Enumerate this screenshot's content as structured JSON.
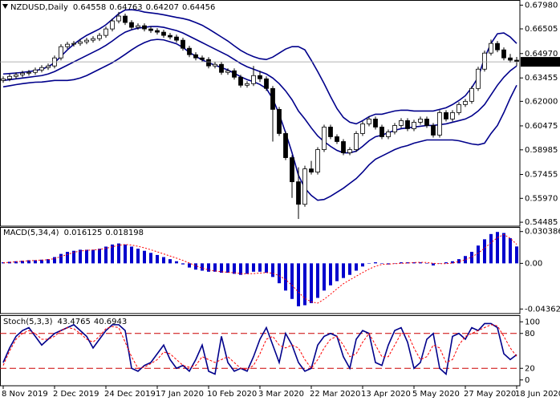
{
  "chart_data": [
    {
      "type": "candlestick",
      "title": "NZDUSD,Daily",
      "up_color": "#ffffff",
      "down_color": "#000000",
      "wick_color": "#000000",
      "open": [
        0.633,
        0.634,
        0.6355,
        0.6365,
        0.6375,
        0.638,
        0.6395,
        0.641,
        0.642,
        0.647,
        0.654,
        0.6555,
        0.656,
        0.657,
        0.658,
        0.659,
        0.661,
        0.665,
        0.67,
        0.673,
        0.669,
        0.666,
        0.667,
        0.665,
        0.664,
        0.663,
        0.661,
        0.66,
        0.658,
        0.653,
        0.649,
        0.647,
        0.646,
        0.642,
        0.643,
        0.638,
        0.639,
        0.635,
        0.63,
        0.631,
        0.636,
        0.634,
        0.628,
        0.615,
        0.6,
        0.585,
        0.57,
        0.556,
        0.578,
        0.576,
        0.59,
        0.604,
        0.598,
        0.595,
        0.588,
        0.59,
        0.6,
        0.606,
        0.609,
        0.604,
        0.598,
        0.601,
        0.605,
        0.608,
        0.603,
        0.607,
        0.609,
        0.605,
        0.599,
        0.613,
        0.609,
        0.613,
        0.618,
        0.62,
        0.628,
        0.64,
        0.65,
        0.656,
        0.652,
        0.647,
        0.64558
      ],
      "high": [
        0.6355,
        0.637,
        0.638,
        0.639,
        0.6395,
        0.641,
        0.6425,
        0.6435,
        0.6485,
        0.6555,
        0.657,
        0.6575,
        0.6585,
        0.6595,
        0.6605,
        0.6625,
        0.6665,
        0.6715,
        0.6756,
        0.6745,
        0.6705,
        0.6685,
        0.6685,
        0.6665,
        0.6655,
        0.6645,
        0.6625,
        0.6615,
        0.6595,
        0.6545,
        0.6505,
        0.6485,
        0.6475,
        0.6445,
        0.6445,
        0.6405,
        0.6405,
        0.6365,
        0.6325,
        0.642,
        0.639,
        0.6355,
        0.6295,
        0.6165,
        0.6015,
        0.5865,
        0.579,
        0.58,
        0.583,
        0.5915,
        0.6055,
        0.6055,
        0.5995,
        0.5965,
        0.5915,
        0.6015,
        0.6075,
        0.6105,
        0.6105,
        0.6055,
        0.6025,
        0.6065,
        0.6095,
        0.6095,
        0.6085,
        0.6105,
        0.6105,
        0.6065,
        0.6145,
        0.6145,
        0.6145,
        0.6195,
        0.6215,
        0.6295,
        0.6415,
        0.6515,
        0.6584,
        0.6575,
        0.6535,
        0.6495,
        0.64763
      ],
      "low": [
        0.6315,
        0.6325,
        0.634,
        0.635,
        0.636,
        0.6365,
        0.638,
        0.6395,
        0.6405,
        0.6455,
        0.6525,
        0.654,
        0.6545,
        0.6555,
        0.6565,
        0.6575,
        0.6595,
        0.6635,
        0.6685,
        0.6675,
        0.6645,
        0.6645,
        0.6635,
        0.6625,
        0.6615,
        0.6595,
        0.6585,
        0.6565,
        0.6515,
        0.6475,
        0.6455,
        0.6445,
        0.6405,
        0.6405,
        0.6365,
        0.6365,
        0.6335,
        0.6285,
        0.6285,
        0.6295,
        0.632,
        0.6265,
        0.595,
        0.5985,
        0.5835,
        0.56,
        0.5469,
        0.5545,
        0.5745,
        0.5745,
        0.5885,
        0.5965,
        0.5935,
        0.5865,
        0.5865,
        0.5885,
        0.5985,
        0.6045,
        0.6025,
        0.5965,
        0.5965,
        0.5995,
        0.6035,
        0.6015,
        0.6015,
        0.6055,
        0.6035,
        0.5975,
        0.5975,
        0.6075,
        0.6075,
        0.6115,
        0.6165,
        0.6185,
        0.6265,
        0.6385,
        0.6485,
        0.6505,
        0.6455,
        0.6441,
        0.64207
      ],
      "close": [
        0.634,
        0.6355,
        0.6365,
        0.6375,
        0.638,
        0.6395,
        0.641,
        0.642,
        0.647,
        0.654,
        0.6555,
        0.656,
        0.657,
        0.658,
        0.659,
        0.661,
        0.665,
        0.67,
        0.673,
        0.669,
        0.666,
        0.667,
        0.665,
        0.664,
        0.663,
        0.661,
        0.66,
        0.658,
        0.653,
        0.649,
        0.647,
        0.646,
        0.642,
        0.643,
        0.638,
        0.639,
        0.635,
        0.63,
        0.631,
        0.636,
        0.634,
        0.628,
        0.615,
        0.6,
        0.585,
        0.57,
        0.556,
        0.578,
        0.576,
        0.59,
        0.604,
        0.598,
        0.595,
        0.588,
        0.59,
        0.6,
        0.606,
        0.609,
        0.604,
        0.598,
        0.601,
        0.605,
        0.608,
        0.603,
        0.607,
        0.609,
        0.605,
        0.599,
        0.613,
        0.609,
        0.613,
        0.618,
        0.62,
        0.628,
        0.64,
        0.65,
        0.656,
        0.652,
        0.647,
        0.6456,
        0.64456
      ],
      "overlays": [
        {
          "color": "#00008b",
          "values": [
            0.637,
            0.6373,
            0.6376,
            0.638,
            0.6385,
            0.6391,
            0.64,
            0.6415,
            0.644,
            0.648,
            0.652,
            0.6555,
            0.6585,
            0.661,
            0.663,
            0.665,
            0.6676,
            0.671,
            0.6745,
            0.6768,
            0.677,
            0.6765,
            0.6755,
            0.675,
            0.6745,
            0.6738,
            0.673,
            0.6722,
            0.6715,
            0.6705,
            0.669,
            0.6673,
            0.665,
            0.6625,
            0.66,
            0.6575,
            0.6545,
            0.6517,
            0.6495,
            0.6478,
            0.6465,
            0.646,
            0.6475,
            0.65,
            0.6525,
            0.654,
            0.654,
            0.652,
            0.6455,
            0.6385,
            0.631,
            0.623,
            0.6155,
            0.61,
            0.607,
            0.606,
            0.608,
            0.6105,
            0.612,
            0.612,
            0.613,
            0.614,
            0.6145,
            0.6145,
            0.614,
            0.614,
            0.614,
            0.614,
            0.615,
            0.616,
            0.618,
            0.6205,
            0.6235,
            0.6285,
            0.635,
            0.647,
            0.656,
            0.662,
            0.6625,
            0.66,
            0.656
          ]
        },
        {
          "color": "#00008b",
          "values": [
            0.633,
            0.6335,
            0.634,
            0.6345,
            0.635,
            0.6355,
            0.636,
            0.637,
            0.6385,
            0.6405,
            0.6425,
            0.6445,
            0.6465,
            0.6485,
            0.6505,
            0.6525,
            0.6548,
            0.6575,
            0.6605,
            0.663,
            0.6645,
            0.6655,
            0.666,
            0.6665,
            0.6665,
            0.666,
            0.665,
            0.664,
            0.6625,
            0.6605,
            0.6585,
            0.6565,
            0.6545,
            0.6525,
            0.6505,
            0.6485,
            0.646,
            0.6435,
            0.6415,
            0.64,
            0.6385,
            0.637,
            0.6345,
            0.631,
            0.6265,
            0.621,
            0.614,
            0.609,
            0.6035,
            0.5985,
            0.595,
            0.592,
            0.5895,
            0.588,
            0.588,
            0.589,
            0.592,
            0.5955,
            0.598,
            0.599,
            0.6005,
            0.602,
            0.603,
            0.6035,
            0.604,
            0.6045,
            0.605,
            0.605,
            0.6055,
            0.606,
            0.607,
            0.608,
            0.609,
            0.611,
            0.614,
            0.618,
            0.624,
            0.63,
            0.635,
            0.639,
            0.642
          ]
        },
        {
          "color": "#00008b",
          "values": [
            0.629,
            0.6297,
            0.6304,
            0.631,
            0.6315,
            0.6319,
            0.632,
            0.6325,
            0.633,
            0.633,
            0.633,
            0.6335,
            0.6345,
            0.636,
            0.638,
            0.64,
            0.642,
            0.644,
            0.6465,
            0.6492,
            0.652,
            0.6545,
            0.6565,
            0.658,
            0.6585,
            0.6582,
            0.657,
            0.6558,
            0.6535,
            0.6505,
            0.648,
            0.6457,
            0.644,
            0.6425,
            0.641,
            0.6395,
            0.6375,
            0.6353,
            0.6335,
            0.6322,
            0.6305,
            0.628,
            0.6215,
            0.612,
            0.6005,
            0.588,
            0.574,
            0.566,
            0.5615,
            0.5585,
            0.559,
            0.561,
            0.5635,
            0.566,
            0.569,
            0.572,
            0.576,
            0.5805,
            0.584,
            0.586,
            0.588,
            0.59,
            0.5915,
            0.5925,
            0.594,
            0.595,
            0.596,
            0.596,
            0.596,
            0.596,
            0.596,
            0.5955,
            0.5945,
            0.5935,
            0.593,
            0.594,
            0.6,
            0.605,
            0.613,
            0.622,
            0.63
          ]
        }
      ],
      "current_price": 0.64456,
      "current_price_color": "#9a9a9a",
      "ylim": [
        0.5424,
        0.6825
      ],
      "yticks": [
        {
          "value": 0.6798,
          "label": "0.67980"
        },
        0.66505,
        {
          "value": 0.6497,
          "label": "0.64970"
        },
        0.63455,
        {
          "value": 0.62,
          "label": "0.62000"
        },
        0.60475,
        0.58985,
        0.57455,
        {
          "value": 0.5597,
          "label": "0.55970"
        },
        0.54485
      ]
    },
    {
      "type": "macd",
      "title": "MACD(5,34,4)",
      "series": [
        {
          "style": "bar",
          "color": "#0000cd",
          "values": [
            0.001,
            0.0015,
            0.002,
            0.0025,
            0.003,
            0.003,
            0.0035,
            0.004,
            0.006,
            0.009,
            0.011,
            0.012,
            0.013,
            0.013,
            0.013,
            0.014,
            0.016,
            0.018,
            0.019,
            0.018,
            0.016,
            0.014,
            0.012,
            0.01,
            0.008,
            0.006,
            0.004,
            0.002,
            -0.001,
            -0.004,
            -0.006,
            -0.007,
            -0.008,
            -0.008,
            -0.009,
            -0.009,
            -0.01,
            -0.011,
            -0.01,
            -0.008,
            -0.008,
            -0.009,
            -0.013,
            -0.019,
            -0.026,
            -0.034,
            -0.041,
            -0.04,
            -0.038,
            -0.033,
            -0.026,
            -0.021,
            -0.017,
            -0.014,
            -0.011,
            -0.007,
            -0.003,
            0,
            0.001,
            0,
            -0.001,
            0,
            0.001,
            0.001,
            0.001,
            0.001,
            0,
            -0.002,
            0,
            0.001,
            0.002,
            0.004,
            0.007,
            0.011,
            0.017,
            0.023,
            0.028,
            0.03,
            0.029,
            0.024,
            0.016125
          ]
        },
        {
          "style": "dotted",
          "color": "#ff0000",
          "values": [
            0.0005,
            0.001,
            0.0015,
            0.002,
            0.0025,
            0.0028,
            0.0031,
            0.0035,
            0.0045,
            0.0065,
            0.0085,
            0.0105,
            0.0118,
            0.0125,
            0.0128,
            0.0133,
            0.0143,
            0.0158,
            0.0173,
            0.018,
            0.0175,
            0.0163,
            0.0148,
            0.013,
            0.011,
            0.009,
            0.007,
            0.005,
            0.0028,
            0.0003,
            -0.0023,
            -0.0045,
            -0.0063,
            -0.0073,
            -0.008,
            -0.0085,
            -0.009,
            -0.0098,
            -0.01,
            -0.0098,
            -0.0093,
            -0.0088,
            -0.0095,
            -0.0118,
            -0.0155,
            -0.021,
            -0.0275,
            -0.0335,
            -0.0368,
            -0.038,
            -0.0343,
            -0.0295,
            -0.0243,
            -0.0195,
            -0.0158,
            -0.0123,
            -0.0088,
            -0.0055,
            -0.0028,
            -0.001,
            -0.0007,
            -0.0003,
            0.0,
            0.0003,
            0.0008,
            0.001,
            0.0008,
            0.0,
            -0.0003,
            -0.0003,
            0.0003,
            0.0018,
            0.0035,
            0.006,
            0.0098,
            0.0145,
            0.0198,
            0.0245,
            0.0275,
            0.024,
            0.018198
          ]
        }
      ],
      "ylim": [
        -0.048,
        0.034
      ],
      "yticks": [
        0.030386,
        {
          "value": 0,
          "label": "0.00"
        },
        -0.043627
      ]
    },
    {
      "type": "stochastic",
      "title": "Stoch(5,3,3)",
      "categories": [
        "8 Nov 2019",
        null,
        null,
        null,
        null,
        null,
        null,
        null,
        "2 Dec 2019",
        null,
        null,
        null,
        null,
        null,
        null,
        null,
        "24 Dec 2019",
        null,
        null,
        null,
        null,
        null,
        null,
        null,
        "17 Jan 2020",
        null,
        null,
        null,
        null,
        null,
        null,
        null,
        "10 Feb 2020",
        null,
        null,
        null,
        null,
        null,
        null,
        null,
        "3 Mar 2020",
        null,
        null,
        null,
        null,
        null,
        null,
        null,
        "22 Mar 2020",
        null,
        null,
        null,
        null,
        null,
        null,
        null,
        "13 Apr 2020",
        null,
        null,
        null,
        null,
        null,
        null,
        null,
        "5 May 2020",
        null,
        null,
        null,
        null,
        null,
        null,
        null,
        "27 May 2020",
        null,
        null,
        null,
        null,
        null,
        null,
        null,
        "18 Jun 2020"
      ],
      "series": [
        {
          "style": "solid",
          "color": "#00008b",
          "values": [
            30,
            55,
            75,
            85,
            90,
            75,
            60,
            70,
            80,
            85,
            90,
            95,
            85,
            75,
            55,
            70,
            85,
            95,
            95,
            85,
            20,
            15,
            25,
            30,
            45,
            60,
            35,
            20,
            25,
            15,
            35,
            60,
            15,
            10,
            75,
            30,
            15,
            20,
            15,
            40,
            70,
            90,
            60,
            30,
            80,
            60,
            30,
            15,
            20,
            60,
            75,
            80,
            75,
            40,
            20,
            70,
            85,
            80,
            30,
            25,
            60,
            85,
            90,
            65,
            20,
            30,
            70,
            80,
            20,
            10,
            75,
            80,
            70,
            90,
            85,
            97,
            97,
            90,
            45,
            35,
            43.4765
          ]
        },
        {
          "style": "dashed",
          "color": "#ff0000",
          "values": [
            25,
            50,
            70,
            80,
            85,
            80,
            70,
            70,
            75,
            85,
            90,
            88,
            80,
            70,
            65,
            75,
            88,
            92,
            90,
            65,
            40,
            20,
            22,
            28,
            35,
            48,
            45,
            35,
            25,
            22,
            25,
            40,
            35,
            30,
            35,
            40,
            30,
            20,
            18,
            25,
            45,
            70,
            75,
            60,
            55,
            60,
            55,
            35,
            20,
            35,
            55,
            70,
            75,
            60,
            40,
            45,
            65,
            80,
            60,
            40,
            40,
            60,
            80,
            80,
            55,
            35,
            40,
            60,
            55,
            30,
            35,
            60,
            75,
            80,
            85,
            90,
            95,
            93,
            75,
            55,
            40.6943
          ]
        }
      ],
      "levels": [
        80,
        20
      ],
      "level_color": "#cc0000",
      "ylim": [
        -10,
        110
      ],
      "yticks": [
        100,
        80,
        20,
        0
      ]
    }
  ]
}
